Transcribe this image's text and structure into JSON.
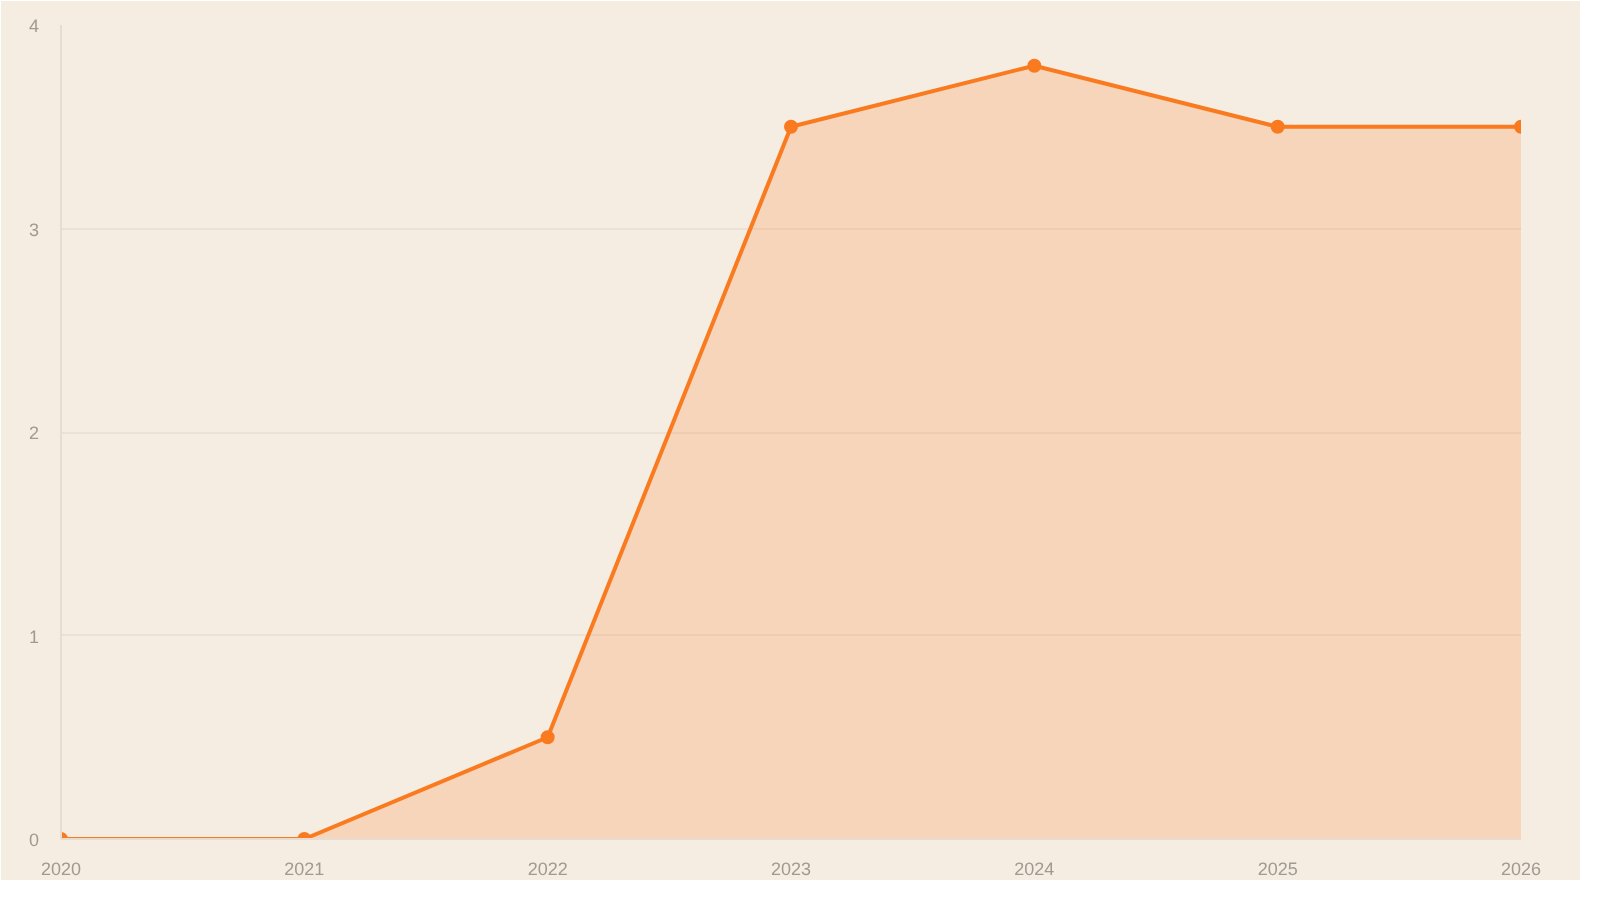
{
  "chart_data": {
    "type": "area",
    "x": [
      2020,
      2021,
      2022,
      2023,
      2024,
      2025,
      2026
    ],
    "series": [
      {
        "color": "#f97a1f",
        "values": [
          0,
          0,
          0.5,
          3.5,
          3.8,
          3.5,
          3.5
        ]
      }
    ],
    "xlim": [
      2020,
      2026
    ],
    "ylim": [
      0,
      4
    ],
    "xticks": [
      2020,
      2021,
      2022,
      2023,
      2024,
      2025,
      2026
    ],
    "yticks": [
      0,
      1,
      2,
      3,
      4
    ],
    "grid": "y",
    "marker": "circle",
    "line_style": "solid"
  }
}
